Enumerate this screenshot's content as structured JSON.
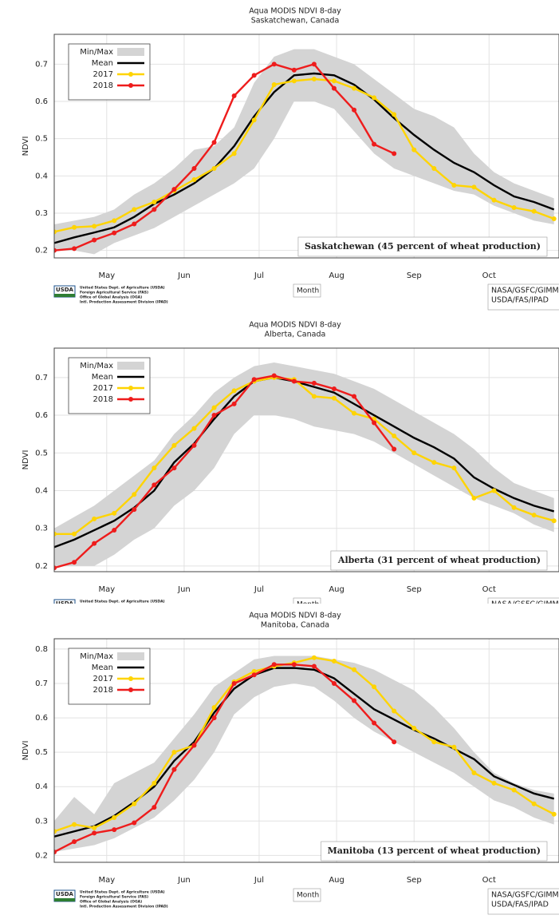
{
  "chart_data": [
    {
      "type": "line",
      "title": "Aqua MODIS NDVI 8-day",
      "subtitle": "Saskatchewan, Canada",
      "ylabel": "NDVI",
      "xlabel": "Month",
      "annotation": "Saskatchewan (45 percent of wheat production)",
      "x": [
        100,
        108,
        116,
        124,
        132,
        140,
        148,
        156,
        164,
        172,
        180,
        188,
        196,
        204,
        212,
        220,
        228,
        236,
        244,
        252,
        260,
        268,
        276,
        284,
        292,
        300
      ],
      "xlim": [
        100,
        302
      ],
      "xticks": [
        {
          "value": 121,
          "label": "May"
        },
        {
          "value": 152,
          "label": "Jun"
        },
        {
          "value": 182,
          "label": "Jul"
        },
        {
          "value": 213,
          "label": "Aug"
        },
        {
          "value": 244,
          "label": "Sep"
        },
        {
          "value": 274,
          "label": "Oct"
        }
      ],
      "ylim": [
        0.18,
        0.78
      ],
      "yticks": [
        0.2,
        0.3,
        0.4,
        0.5,
        0.6,
        0.7
      ],
      "grid": true,
      "series": [
        {
          "name": "Min/Max",
          "color": "#d4d4d4",
          "lower": [
            0.2,
            0.2,
            0.19,
            0.22,
            0.24,
            0.26,
            0.29,
            0.32,
            0.35,
            0.38,
            0.42,
            0.5,
            0.6,
            0.6,
            0.58,
            0.52,
            0.46,
            0.42,
            0.4,
            0.38,
            0.36,
            0.35,
            0.32,
            0.3,
            0.28,
            0.27
          ],
          "upper": [
            0.27,
            0.28,
            0.29,
            0.31,
            0.35,
            0.38,
            0.42,
            0.47,
            0.48,
            0.53,
            0.65,
            0.72,
            0.74,
            0.74,
            0.72,
            0.7,
            0.66,
            0.62,
            0.58,
            0.56,
            0.53,
            0.46,
            0.41,
            0.38,
            0.36,
            0.34
          ]
        },
        {
          "name": "Mean",
          "color": "#000000",
          "values": [
            0.22,
            0.235,
            0.248,
            0.262,
            0.29,
            0.325,
            0.35,
            0.38,
            0.42,
            0.48,
            0.56,
            0.625,
            0.67,
            0.675,
            0.67,
            0.645,
            0.605,
            0.555,
            0.51,
            0.47,
            0.435,
            0.41,
            0.375,
            0.345,
            0.33,
            0.31
          ]
        },
        {
          "name": "2017",
          "color": "#ffd400",
          "values": [
            0.25,
            0.262,
            0.265,
            0.28,
            0.31,
            0.33,
            0.36,
            0.39,
            0.42,
            0.46,
            0.55,
            0.645,
            0.655,
            0.66,
            0.655,
            0.635,
            0.61,
            0.565,
            0.47,
            0.42,
            0.375,
            0.37,
            0.335,
            0.315,
            0.305,
            0.285
          ]
        },
        {
          "name": "2018",
          "color": "#ee1c1c",
          "values": [
            0.2,
            0.205,
            0.228,
            0.247,
            0.271,
            0.31,
            0.364,
            0.42,
            0.49,
            0.615,
            0.67,
            0.7,
            0.684,
            0.7,
            0.635,
            0.577,
            0.485,
            0.46,
            null,
            null,
            null,
            null,
            null,
            null,
            null,
            null
          ]
        }
      ],
      "source": {
        "logo": "USDA",
        "org_lines": [
          "United States Dept. of Agriculture (USDA)",
          "Foreign Agricultural Service (FAS)",
          "Office of Global Analysis (OGA)",
          "Intl. Production Assessment Division (IPAD)"
        ],
        "credits": [
          "NASA/GSFC/GIMMS",
          "USDA/FAS/IPAD"
        ]
      }
    },
    {
      "type": "line",
      "title": "Aqua MODIS NDVI 8-day",
      "subtitle": "Alberta, Canada",
      "ylabel": "NDVI",
      "xlabel": "Month",
      "annotation": "Alberta (31 percent of wheat production)",
      "x": [
        100,
        108,
        116,
        124,
        132,
        140,
        148,
        156,
        164,
        172,
        180,
        188,
        196,
        204,
        212,
        220,
        228,
        236,
        244,
        252,
        260,
        268,
        276,
        284,
        292,
        300
      ],
      "xlim": [
        100,
        302
      ],
      "xticks": [
        {
          "value": 121,
          "label": "May"
        },
        {
          "value": 152,
          "label": "Jun"
        },
        {
          "value": 182,
          "label": "Jul"
        },
        {
          "value": 213,
          "label": "Aug"
        },
        {
          "value": 244,
          "label": "Sep"
        },
        {
          "value": 274,
          "label": "Oct"
        }
      ],
      "ylim": [
        0.185,
        0.778
      ],
      "yticks": [
        0.2,
        0.3,
        0.4,
        0.5,
        0.6,
        0.7
      ],
      "grid": true,
      "series": [
        {
          "name": "Min/Max",
          "color": "#d4d4d4",
          "lower": [
            0.2,
            0.2,
            0.2,
            0.23,
            0.27,
            0.3,
            0.36,
            0.4,
            0.46,
            0.55,
            0.6,
            0.6,
            0.59,
            0.57,
            0.56,
            0.55,
            0.53,
            0.5,
            0.47,
            0.44,
            0.41,
            0.38,
            0.36,
            0.34,
            0.31,
            0.29
          ],
          "upper": [
            0.3,
            0.33,
            0.36,
            0.4,
            0.44,
            0.48,
            0.55,
            0.6,
            0.66,
            0.7,
            0.73,
            0.74,
            0.73,
            0.72,
            0.71,
            0.69,
            0.67,
            0.64,
            0.61,
            0.58,
            0.55,
            0.51,
            0.46,
            0.42,
            0.4,
            0.38
          ]
        },
        {
          "name": "Mean",
          "color": "#000000",
          "values": [
            0.25,
            0.27,
            0.295,
            0.32,
            0.355,
            0.4,
            0.475,
            0.525,
            0.59,
            0.65,
            0.69,
            0.7,
            0.69,
            0.675,
            0.66,
            0.63,
            0.6,
            0.57,
            0.54,
            0.515,
            0.485,
            0.435,
            0.405,
            0.38,
            0.36,
            0.345
          ]
        },
        {
          "name": "2017",
          "color": "#ffd400",
          "values": [
            0.285,
            0.285,
            0.325,
            0.34,
            0.39,
            0.46,
            0.52,
            0.565,
            0.62,
            0.665,
            0.69,
            0.7,
            0.695,
            0.65,
            0.645,
            0.605,
            0.59,
            0.545,
            0.5,
            0.475,
            0.46,
            0.38,
            0.4,
            0.355,
            0.335,
            0.32
          ]
        },
        {
          "name": "2018",
          "color": "#ee1c1c",
          "values": [
            0.195,
            0.21,
            0.26,
            0.295,
            0.35,
            0.415,
            0.46,
            0.52,
            0.6,
            0.63,
            0.695,
            0.705,
            0.69,
            0.685,
            0.67,
            0.65,
            0.58,
            0.51,
            null,
            null,
            null,
            null,
            null,
            null,
            null,
            null
          ]
        }
      ],
      "source": {
        "logo": "USDA",
        "org_lines": [
          "United States Dept. of Agriculture (USDA)"
        ],
        "credits": [
          "NASA/GSFC/GIMMS"
        ]
      }
    },
    {
      "type": "line",
      "title": "Aqua MODIS NDVI 8-day",
      "subtitle": "Manitoba, Canada",
      "ylabel": "NDVI",
      "xlabel": "Month",
      "annotation": "Manitoba (13 percent of wheat production)",
      "x": [
        100,
        108,
        116,
        124,
        132,
        140,
        148,
        156,
        164,
        172,
        180,
        188,
        196,
        204,
        212,
        220,
        228,
        236,
        244,
        252,
        260,
        268,
        276,
        284,
        292,
        300
      ],
      "xlim": [
        100,
        302
      ],
      "xticks": [
        {
          "value": 121,
          "label": "May"
        },
        {
          "value": 152,
          "label": "Jun"
        },
        {
          "value": 182,
          "label": "Jul"
        },
        {
          "value": 213,
          "label": "Aug"
        },
        {
          "value": 244,
          "label": "Sep"
        },
        {
          "value": 274,
          "label": "Oct"
        }
      ],
      "ylim": [
        0.18,
        0.83
      ],
      "yticks": [
        0.2,
        0.3,
        0.4,
        0.5,
        0.6,
        0.7,
        0.8
      ],
      "grid": true,
      "series": [
        {
          "name": "Min/Max",
          "color": "#d4d4d4",
          "lower": [
            0.21,
            0.22,
            0.23,
            0.25,
            0.28,
            0.31,
            0.36,
            0.42,
            0.5,
            0.61,
            0.66,
            0.69,
            0.7,
            0.69,
            0.65,
            0.6,
            0.56,
            0.53,
            0.5,
            0.47,
            0.44,
            0.4,
            0.36,
            0.34,
            0.31,
            0.29
          ],
          "upper": [
            0.3,
            0.37,
            0.32,
            0.41,
            0.44,
            0.47,
            0.54,
            0.61,
            0.69,
            0.73,
            0.77,
            0.78,
            0.78,
            0.78,
            0.77,
            0.76,
            0.74,
            0.71,
            0.68,
            0.63,
            0.57,
            0.5,
            0.44,
            0.41,
            0.39,
            0.38
          ]
        },
        {
          "name": "Mean",
          "color": "#000000",
          "values": [
            0.255,
            0.27,
            0.285,
            0.315,
            0.355,
            0.4,
            0.475,
            0.53,
            0.615,
            0.685,
            0.725,
            0.745,
            0.745,
            0.74,
            0.715,
            0.67,
            0.625,
            0.595,
            0.565,
            0.54,
            0.51,
            0.48,
            0.43,
            0.405,
            0.38,
            0.365
          ]
        },
        {
          "name": "2017",
          "color": "#ffd400",
          "values": [
            0.27,
            0.29,
            0.28,
            0.31,
            0.35,
            0.41,
            0.5,
            0.52,
            0.63,
            0.705,
            0.735,
            0.75,
            0.76,
            0.775,
            0.765,
            0.74,
            0.69,
            0.62,
            0.57,
            0.53,
            0.515,
            0.44,
            0.41,
            0.39,
            0.35,
            0.32
          ]
        },
        {
          "name": "2018",
          "color": "#ee1c1c",
          "values": [
            0.21,
            0.24,
            0.265,
            0.275,
            0.295,
            0.34,
            0.45,
            0.52,
            0.6,
            0.7,
            0.725,
            0.755,
            0.755,
            0.75,
            0.7,
            0.65,
            0.585,
            0.53,
            null,
            null,
            null,
            null,
            null,
            null,
            null,
            null
          ]
        }
      ],
      "source": {
        "logo": "USDA",
        "org_lines": [
          "United States Dept. of Agriculture (USDA)",
          "Foreign Agricultural Service (FAS)",
          "Office of Global Analysis (OGA)",
          "Intl. Production Assessment Division (IPAD)"
        ],
        "credits": [
          "NASA/GSFC/GIMMS",
          "USDA/FAS/IPAD"
        ]
      }
    }
  ]
}
